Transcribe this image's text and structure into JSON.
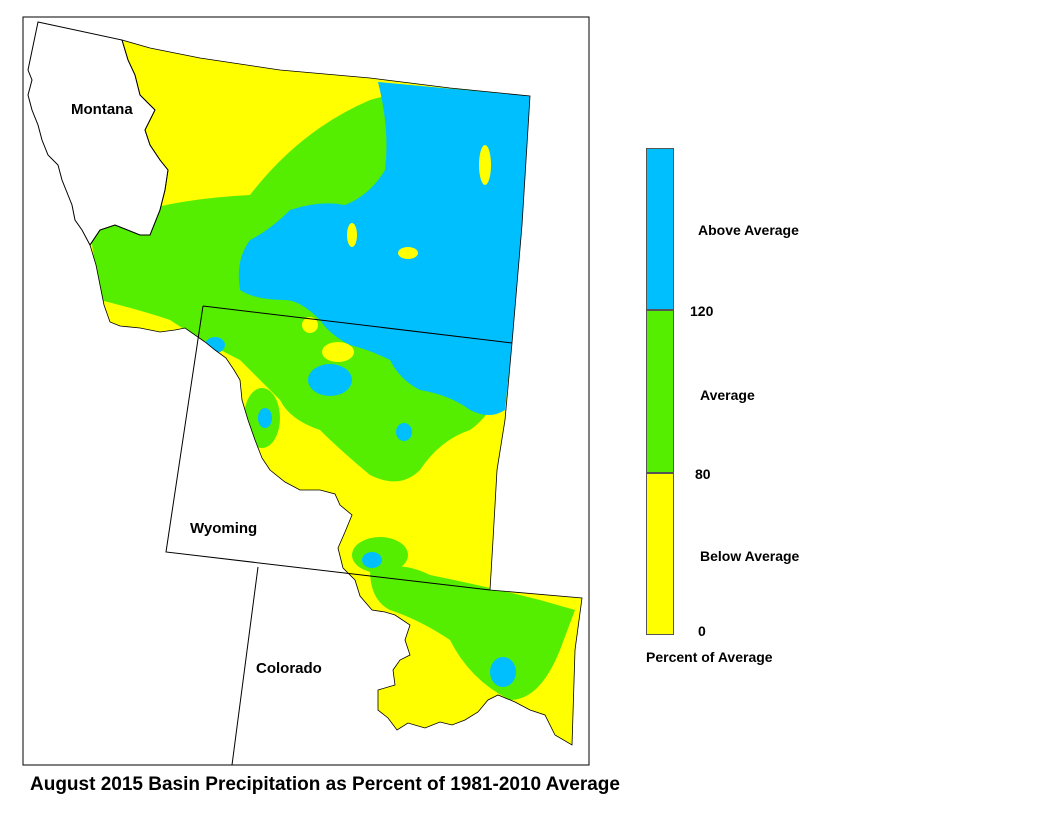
{
  "title": "August 2015 Basin Precipitation as Percent of 1981-2010 Average",
  "states": {
    "montana": "Montana",
    "wyoming": "Wyoming",
    "colorado": "Colorado"
  },
  "legend": {
    "title": "Percent of Average",
    "categories": [
      {
        "label": "Above Average",
        "color": "#00BFFF"
      },
      {
        "label": "Average",
        "color": "#55EE00"
      },
      {
        "label": "Below Average",
        "color": "#FFFF00"
      }
    ],
    "breaks": [
      "120",
      "80",
      "0"
    ]
  },
  "colors": {
    "above": "#00BFFF",
    "average": "#55EE00",
    "below": "#FFFF00",
    "boundary": "#000000"
  }
}
